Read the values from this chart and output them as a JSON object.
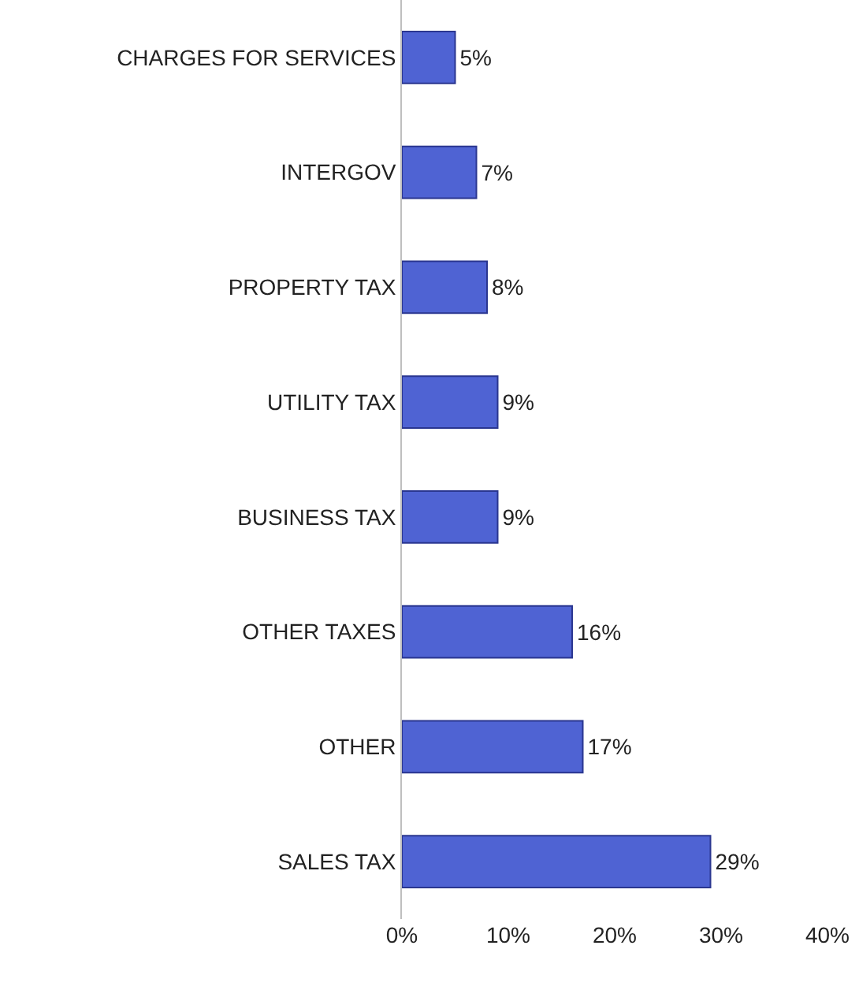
{
  "chart_data": {
    "type": "bar",
    "orientation": "horizontal",
    "categories": [
      "CHARGES FOR SERVICES",
      "INTERGOV",
      "PROPERTY TAX",
      "UTILITY TAX",
      "BUSINESS TAX",
      "OTHER TAXES",
      "OTHER",
      "SALES TAX"
    ],
    "values": [
      5,
      7,
      8,
      9,
      9,
      16,
      17,
      29
    ],
    "value_labels": [
      "5%",
      "7%",
      "8%",
      "9%",
      "9%",
      "16%",
      "17%",
      "29%"
    ],
    "color": "#4f63d3",
    "xlim": [
      0,
      40
    ],
    "xticks": [
      {
        "value": 0,
        "label": "0%"
      },
      {
        "value": 10,
        "label": "10%"
      },
      {
        "value": 20,
        "label": "20%"
      },
      {
        "value": 30,
        "label": "30%"
      },
      {
        "value": 40,
        "label": "40%"
      }
    ],
    "legend": false
  }
}
